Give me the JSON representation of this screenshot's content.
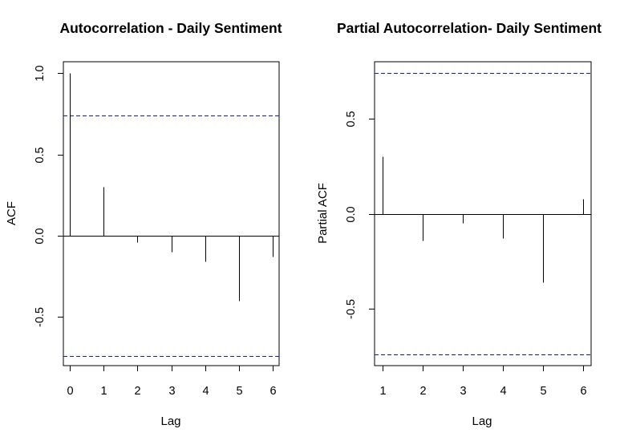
{
  "chart_data": [
    {
      "type": "bar",
      "title": "Autocorrelation - Daily Sentiment",
      "xlabel": "Lag",
      "ylabel": "ACF",
      "x": [
        0,
        1,
        2,
        3,
        4,
        5,
        6
      ],
      "values": [
        1.0,
        0.3,
        -0.04,
        -0.1,
        -0.16,
        -0.4,
        -0.13
      ],
      "xlim": [
        -0.2,
        6.2
      ],
      "ylim": [
        -0.8,
        1.07
      ],
      "yticks": [
        -0.5,
        0.0,
        0.5,
        1.0
      ],
      "ytick_labels": [
        "-0.5",
        "0.0",
        "0.5",
        "1.0"
      ],
      "xticks": [
        0,
        1,
        2,
        3,
        4,
        5,
        6
      ],
      "xtick_labels": [
        "0",
        "1",
        "2",
        "3",
        "4",
        "5",
        "6"
      ],
      "ci": 0.74,
      "ci_color": "#1a1aa8"
    },
    {
      "type": "bar",
      "title": "Partial Autocorrelation- Daily Sentiment",
      "xlabel": "Lag",
      "ylabel": "Partial ACF",
      "x": [
        1,
        2,
        3,
        4,
        5,
        6
      ],
      "values": [
        0.3,
        -0.14,
        -0.05,
        -0.13,
        -0.36,
        0.08
      ],
      "xlim": [
        0.8,
        6.2
      ],
      "ylim": [
        -0.8,
        0.8
      ],
      "yticks": [
        -0.5,
        0.0,
        0.5
      ],
      "ytick_labels": [
        "-0.5",
        "0.0",
        "0.5"
      ],
      "xticks": [
        1,
        2,
        3,
        4,
        5,
        6
      ],
      "xtick_labels": [
        "1",
        "2",
        "3",
        "4",
        "5",
        "6"
      ],
      "ci": 0.74,
      "ci_color": "#1a1aa8"
    }
  ]
}
